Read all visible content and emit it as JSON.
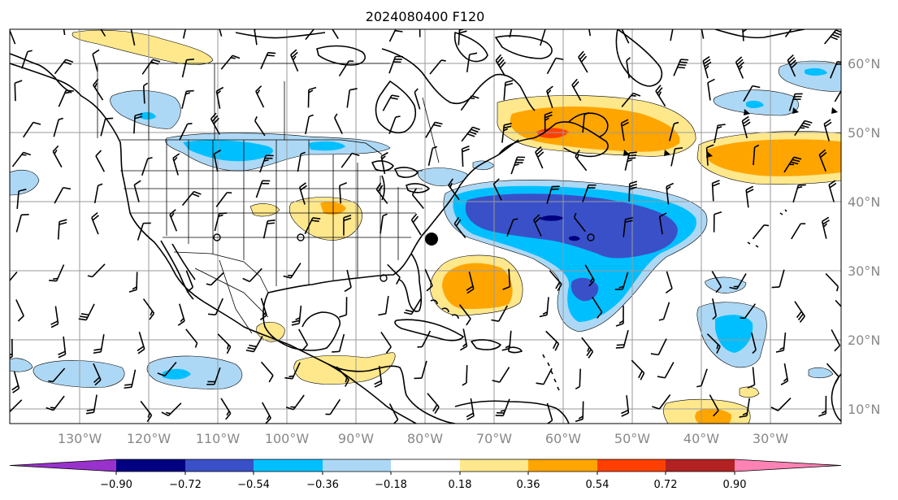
{
  "title": "2024080400 F120",
  "lon_labels": [
    "130°W",
    "120°W",
    "110°W",
    "100°W",
    "90°W",
    "80°W",
    "70°W",
    "60°W",
    "50°W",
    "40°W",
    "30°W"
  ],
  "lat_labels": [
    "60°N",
    "50°N",
    "40°N",
    "30°N",
    "20°N",
    "10°N"
  ],
  "colorbar": {
    "tick_labels": [
      "−0.90",
      "−0.72",
      "−0.54",
      "−0.36",
      "−0.18",
      "0.18",
      "0.36",
      "0.54",
      "0.72",
      "0.90"
    ],
    "colors": [
      "#9932cc",
      "#000080",
      "#3a50c8",
      "#00bfff",
      "#add8f5",
      "#ffffff",
      "#ffe88c",
      "#ffa500",
      "#ff4000",
      "#b22222",
      "#ff82b4"
    ],
    "extend": "both"
  },
  "colors": {
    "grid": "#9a9a9a",
    "tick_text": "#888888",
    "land_lines": "#000000"
  },
  "markers": [
    {
      "type": "filled-circle",
      "name": "hurricane-symbol"
    },
    {
      "type": "open-circle",
      "name": "open-circle-marker"
    }
  ]
}
